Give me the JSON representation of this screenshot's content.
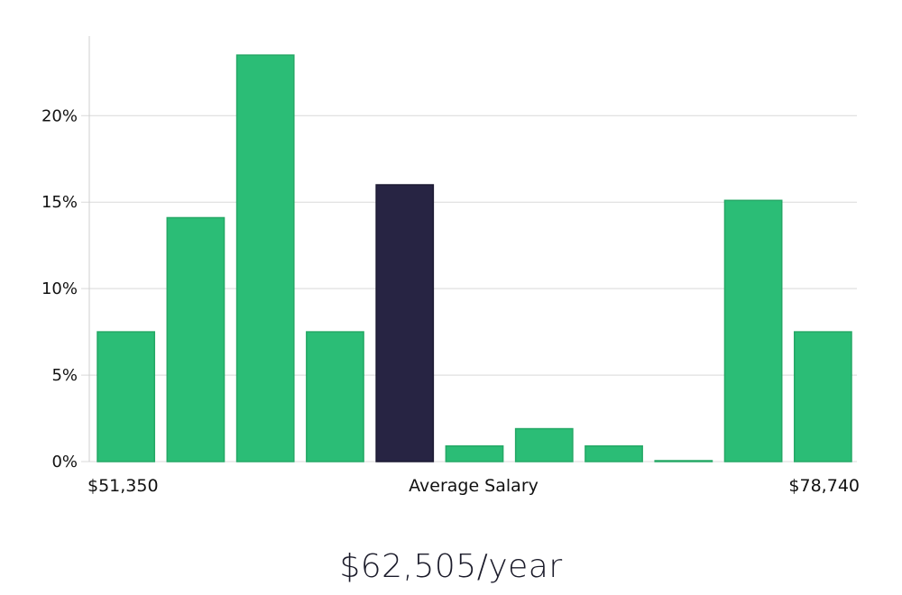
{
  "chart_data": {
    "type": "bar",
    "x_range_labels": {
      "min": "$51,350",
      "center": "Average Salary",
      "max": "$78,740"
    },
    "bins": 11,
    "values": [
      7.5,
      14.1,
      23.5,
      7.5,
      16.0,
      0.9,
      1.9,
      0.9,
      0.05,
      15.1,
      7.5
    ],
    "highlight_index": 4,
    "y_ticks": [
      "0%",
      "5%",
      "10%",
      "15%",
      "20%"
    ],
    "y_tick_values": [
      0,
      5,
      10,
      15,
      20
    ],
    "ylim": [
      0,
      24.6
    ],
    "grid": true,
    "colors": {
      "bar": "#2bbd76",
      "bar_border": "#25a866",
      "highlight": "#272443",
      "grid": "#d9d9d9",
      "axis": "#cfcfcf"
    }
  },
  "salary": {
    "display": "$62,505/year"
  }
}
